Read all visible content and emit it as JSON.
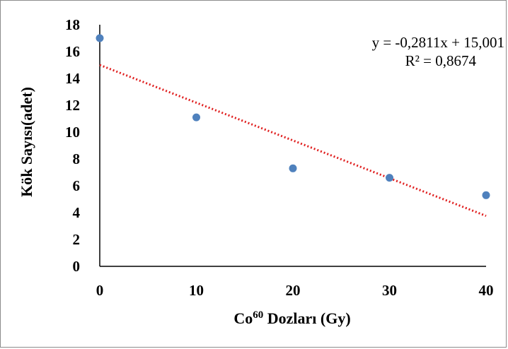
{
  "chart_data": {
    "type": "scatter",
    "x": [
      0,
      10,
      20,
      30,
      40
    ],
    "y": [
      17,
      11.1,
      7.3,
      6.6,
      5.3
    ],
    "xlabel": "Co⁶⁰ Dozları (Gy)",
    "ylabel": "Kök Sayısı(adet)",
    "xticks": [
      "0",
      "10",
      "20",
      "30",
      "40"
    ],
    "yticks": [
      "0",
      "2",
      "4",
      "6",
      "8",
      "10",
      "12",
      "14",
      "16",
      "18"
    ],
    "xlim": [
      0,
      40
    ],
    "ylim": [
      0,
      18
    ],
    "grid": false,
    "trendline": {
      "type": "linear",
      "slope": -0.2811,
      "intercept": 15.001,
      "equation": "y = -0,2811x + 15,001",
      "r_squared": "R² = 0,8674"
    },
    "colors": {
      "points": "#4f81bd",
      "trendline": "#e02020"
    }
  }
}
